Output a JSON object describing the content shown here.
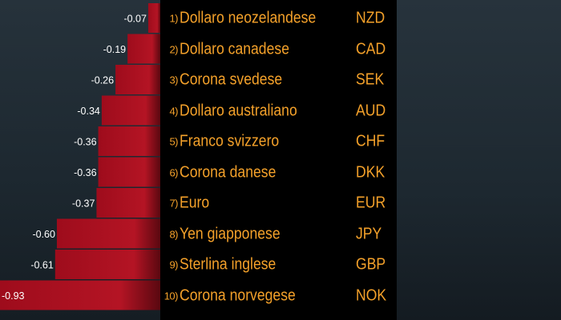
{
  "chart_data": {
    "type": "bar",
    "orientation": "horizontal",
    "categories": [
      "Dollaro neozelandese",
      "Dollaro canadese",
      "Corona svedese",
      "Dollaro australiano",
      "Franco svizzero",
      "Corona danese",
      "Euro",
      "Yen giapponese",
      "Sterlina inglese",
      "Corona norvegese"
    ],
    "ranks": [
      "1)",
      "2)",
      "3)",
      "4)",
      "5)",
      "6)",
      "7)",
      "8)",
      "9)",
      "10)"
    ],
    "codes": [
      "NZD",
      "CAD",
      "SEK",
      "AUD",
      "CHF",
      "DKK",
      "EUR",
      "JPY",
      "GBP",
      "NOK"
    ],
    "values": [
      -0.07,
      -0.19,
      -0.26,
      -0.34,
      -0.36,
      -0.36,
      -0.37,
      -0.6,
      -0.61,
      -0.93
    ],
    "value_labels": [
      "-0.07",
      "-0.19",
      "-0.26",
      "-0.34",
      "-0.36",
      "-0.36",
      "-0.37",
      "-0.60",
      "-0.61",
      "-0.93"
    ],
    "xlim": [
      -0.93,
      0
    ],
    "colors": {
      "bar": "#b01020",
      "bar_dark": "#6a0a14",
      "text": "#f4a12a",
      "value_text": "#ffffff"
    }
  }
}
